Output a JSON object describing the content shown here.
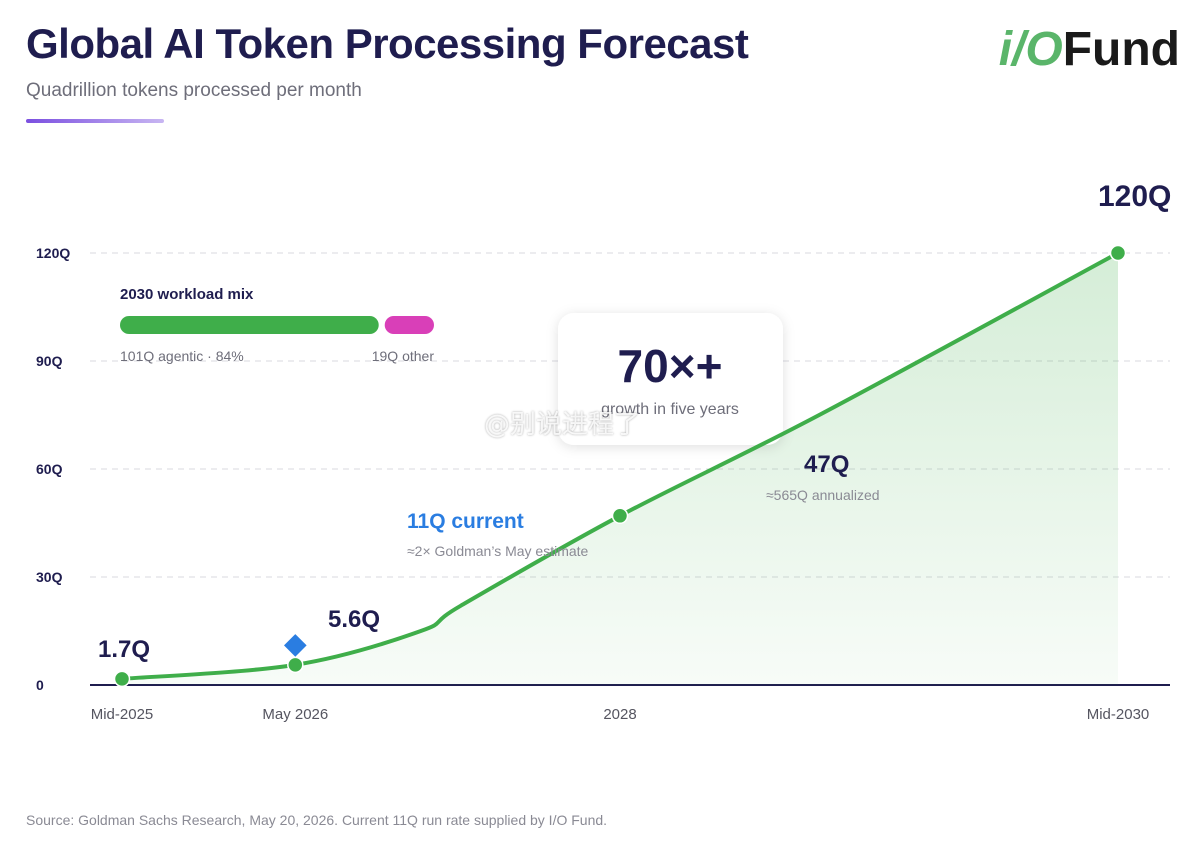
{
  "header": {
    "title": "Global AI Token Processing Forecast",
    "subtitle": "Quadrillion tokens processed per month"
  },
  "logo": {
    "part1": "i/O",
    "part2": "Fund"
  },
  "colors": {
    "title": "#1f1d4f",
    "line": "#3fae4a",
    "area": "#3fae4a",
    "current_marker": "#2a7de1",
    "agentic": "#3fae4a",
    "other": "#d93fb8",
    "grid": "#d9d9df"
  },
  "chart_data": {
    "type": "area",
    "ylim": [
      0,
      120
    ],
    "y_ticks": [
      0,
      30,
      60,
      90,
      120
    ],
    "y_tick_labels": [
      "0",
      "30Q",
      "60Q",
      "90Q",
      "120Q"
    ],
    "x_ticks": [
      2025.5,
      2026.37,
      2028,
      2030.5
    ],
    "x_tick_labels": [
      "Mid-2025",
      "May 2026",
      "2028",
      "Mid-2030"
    ],
    "grid": "horizontal dashed",
    "series": [
      {
        "x": [
          2025.5,
          2026.37,
          2027.0,
          2027.2,
          2028.0,
          2029.0,
          2030.5
        ],
        "y": [
          1.7,
          5.6,
          15,
          22,
          47,
          75,
          120
        ]
      }
    ],
    "points": [
      {
        "x": 2025.5,
        "y": 1.7,
        "label": "1.7Q"
      },
      {
        "x": 2026.37,
        "y": 5.6,
        "label": "5.6Q"
      },
      {
        "x": 2028.0,
        "y": 47,
        "label": "47Q"
      },
      {
        "x": 2030.5,
        "y": 120,
        "label": "120Q"
      }
    ],
    "current": {
      "x": 2026.37,
      "y": 11,
      "label": "11Q current",
      "note": "≈2× Goldman’s May estimate"
    },
    "annotation_47": "≈565Q annualized",
    "callout": {
      "value": "70×+",
      "text": "growth in five years"
    },
    "workload_mix": {
      "title": "2030 workload mix",
      "segments": [
        {
          "name": "agentic",
          "value": 101,
          "share": 0.84,
          "label": "101Q agentic · 84%"
        },
        {
          "name": "other",
          "value": 19,
          "share": 0.16,
          "label": "19Q other"
        }
      ]
    }
  },
  "footer": "Source: Goldman Sachs Research, May 20, 2026. Current 11Q run rate supplied by I/O Fund.",
  "watermark": "@别说进程了"
}
